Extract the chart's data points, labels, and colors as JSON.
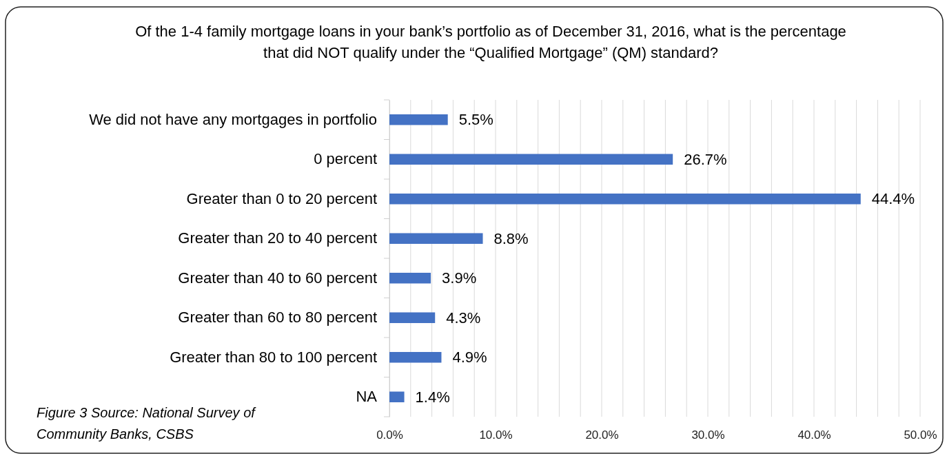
{
  "chart_data": {
    "type": "bar",
    "orientation": "horizontal",
    "title": "Of the 1-4 family mortgage loans in your bank’s portfolio as of December 31, 2016, what is the percentage that did NOT qualify under the “Qualified Mortgage” (QM) standard?",
    "categories": [
      "We did not have any mortgages in portfolio",
      "0 percent",
      "Greater than 0 to 20 percent",
      "Greater than 20 to 40 percent",
      "Greater than 40 to 60 percent",
      "Greater than 60 to 80 percent",
      "Greater than 80 to 100 percent",
      "NA"
    ],
    "values": [
      5.5,
      26.7,
      44.4,
      8.8,
      3.9,
      4.3,
      4.9,
      1.4
    ],
    "value_labels": [
      "5.5%",
      "26.7%",
      "44.4%",
      "8.8%",
      "3.9%",
      "4.3%",
      "4.9%",
      "1.4%"
    ],
    "color": "#4472c4",
    "xlim": [
      0,
      50
    ],
    "xticks": [
      {
        "value": 0,
        "label": "0.0%"
      },
      {
        "value": 2,
        "label": null
      },
      {
        "value": 4,
        "label": null
      },
      {
        "value": 6,
        "label": null
      },
      {
        "value": 8,
        "label": null
      },
      {
        "value": 10,
        "label": "10.0%"
      },
      {
        "value": 12,
        "label": null
      },
      {
        "value": 14,
        "label": null
      },
      {
        "value": 16,
        "label": null
      },
      {
        "value": 18,
        "label": null
      },
      {
        "value": 20,
        "label": "20.0%"
      },
      {
        "value": 22,
        "label": null
      },
      {
        "value": 24,
        "label": null
      },
      {
        "value": 26,
        "label": null
      },
      {
        "value": 28,
        "label": null
      },
      {
        "value": 30,
        "label": "30.0%"
      },
      {
        "value": 32,
        "label": null
      },
      {
        "value": 34,
        "label": null
      },
      {
        "value": 36,
        "label": null
      },
      {
        "value": 38,
        "label": null
      },
      {
        "value": 40,
        "label": "40.0%"
      },
      {
        "value": 42,
        "label": null
      },
      {
        "value": 44,
        "label": null
      },
      {
        "value": 46,
        "label": null
      },
      {
        "value": 48,
        "label": null
      },
      {
        "value": 50,
        "label": "50.0%"
      }
    ],
    "grid": "x",
    "annotations": [
      "Figure 3 Source: National Survey of Community Banks, CSBS"
    ]
  }
}
